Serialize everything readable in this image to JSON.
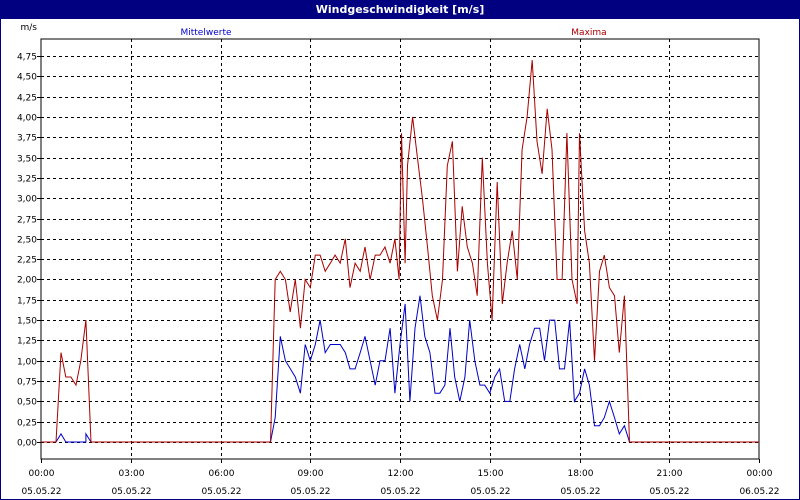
{
  "window": {
    "title": "Windgeschwindigkeit [m/s]"
  },
  "colors": {
    "mean": "#0000cc",
    "max": "#aa0000",
    "grid": "#000000",
    "axis": "#000000"
  },
  "chart_data": {
    "type": "line",
    "title": "Windgeschwindigkeit [m/s]",
    "ylabel": "m/s",
    "xlabel": "",
    "ylim": [
      0,
      4.75
    ],
    "y_ticks": [
      0,
      0.25,
      0.5,
      0.75,
      1.0,
      1.25,
      1.5,
      1.75,
      2.0,
      2.25,
      2.5,
      2.75,
      3.0,
      3.25,
      3.5,
      3.75,
      4.0,
      4.25,
      4.5,
      4.75
    ],
    "y_tick_labels": [
      "0,00",
      "0,25",
      "0,50",
      "0,75",
      "1,00",
      "1,25",
      "1,50",
      "1,75",
      "2,00",
      "2,25",
      "2,50",
      "2,75",
      "3,00",
      "3,25",
      "3,50",
      "3,75",
      "4,00",
      "4,25",
      "4,50",
      "4,75"
    ],
    "x_range_hours": [
      0,
      24
    ],
    "x_ticks": [
      {
        "hour": 0,
        "time": "00:00",
        "date": "05.05.22"
      },
      {
        "hour": 3,
        "time": "03:00",
        "date": "05.05.22"
      },
      {
        "hour": 6,
        "time": "06:00",
        "date": "05.05.22"
      },
      {
        "hour": 9,
        "time": "09:00",
        "date": "05.05.22"
      },
      {
        "hour": 12,
        "time": "12:00",
        "date": "05.05.22"
      },
      {
        "hour": 15,
        "time": "15:00",
        "date": "05.05.22"
      },
      {
        "hour": 18,
        "time": "18:00",
        "date": "05.05.22"
      },
      {
        "hour": 21,
        "time": "21:00",
        "date": "05.05.22"
      },
      {
        "hour": 24,
        "time": "00:00",
        "date": "06.05.22"
      }
    ],
    "grid": true,
    "legend": "top",
    "series": [
      {
        "name": "Mittelwerte",
        "color": "#0000cc",
        "points": [
          [
            0,
            0
          ],
          [
            0.5,
            0
          ],
          [
            0.67,
            0.1
          ],
          [
            0.83,
            0
          ],
          [
            1.5,
            0
          ],
          [
            1.5,
            0
          ],
          [
            1.5,
            0.1
          ],
          [
            1.67,
            0
          ],
          [
            2,
            0
          ],
          [
            7.67,
            0
          ],
          [
            7.83,
            0.3
          ],
          [
            8,
            1.3
          ],
          [
            8.17,
            1.0
          ],
          [
            8.5,
            0.8
          ],
          [
            8.67,
            0.6
          ],
          [
            8.83,
            1.2
          ],
          [
            9.0,
            1.0
          ],
          [
            9.17,
            1.2
          ],
          [
            9.33,
            1.5
          ],
          [
            9.5,
            1.1
          ],
          [
            9.67,
            1.2
          ],
          [
            10.0,
            1.2
          ],
          [
            10.17,
            1.1
          ],
          [
            10.33,
            0.9
          ],
          [
            10.5,
            0.9
          ],
          [
            10.67,
            1.1
          ],
          [
            10.83,
            1.3
          ],
          [
            11.0,
            1.0
          ],
          [
            11.17,
            0.7
          ],
          [
            11.33,
            1.0
          ],
          [
            11.5,
            1.0
          ],
          [
            11.67,
            1.4
          ],
          [
            11.83,
            0.6
          ],
          [
            12.0,
            1.2
          ],
          [
            12.17,
            1.7
          ],
          [
            12.33,
            0.5
          ],
          [
            12.5,
            1.4
          ],
          [
            12.67,
            1.8
          ],
          [
            12.83,
            1.3
          ],
          [
            13.0,
            1.1
          ],
          [
            13.17,
            0.6
          ],
          [
            13.33,
            0.6
          ],
          [
            13.5,
            0.7
          ],
          [
            13.67,
            1.4
          ],
          [
            13.83,
            0.8
          ],
          [
            14.0,
            0.5
          ],
          [
            14.17,
            0.8
          ],
          [
            14.33,
            1.5
          ],
          [
            14.5,
            1.0
          ],
          [
            14.67,
            0.7
          ],
          [
            14.83,
            0.7
          ],
          [
            15.0,
            0.6
          ],
          [
            15.17,
            0.8
          ],
          [
            15.33,
            0.9
          ],
          [
            15.5,
            0.5
          ],
          [
            15.67,
            0.5
          ],
          [
            15.83,
            0.9
          ],
          [
            16.0,
            1.2
          ],
          [
            16.17,
            0.9
          ],
          [
            16.33,
            1.2
          ],
          [
            16.5,
            1.4
          ],
          [
            16.67,
            1.4
          ],
          [
            16.83,
            1.0
          ],
          [
            17.0,
            1.5
          ],
          [
            17.17,
            1.5
          ],
          [
            17.33,
            0.9
          ],
          [
            17.5,
            0.9
          ],
          [
            17.67,
            1.5
          ],
          [
            17.83,
            0.5
          ],
          [
            18.0,
            0.6
          ],
          [
            18.17,
            0.9
          ],
          [
            18.33,
            0.7
          ],
          [
            18.5,
            0.2
          ],
          [
            18.67,
            0.2
          ],
          [
            18.83,
            0.3
          ],
          [
            19.0,
            0.5
          ],
          [
            19.17,
            0.3
          ],
          [
            19.33,
            0.1
          ],
          [
            19.5,
            0.2
          ],
          [
            19.67,
            0
          ],
          [
            20,
            0
          ],
          [
            24,
            0
          ]
        ]
      },
      {
        "name": "Maxima",
        "color": "#aa0000",
        "points": [
          [
            0,
            0
          ],
          [
            0.5,
            0
          ],
          [
            0.67,
            1.1
          ],
          [
            0.83,
            0.8
          ],
          [
            1.0,
            0.8
          ],
          [
            1.17,
            0.7
          ],
          [
            1.33,
            1.0
          ],
          [
            1.5,
            1.5
          ],
          [
            1.67,
            0
          ],
          [
            2,
            0
          ],
          [
            7.67,
            0
          ],
          [
            7.83,
            2.0
          ],
          [
            8.0,
            2.1
          ],
          [
            8.17,
            2.0
          ],
          [
            8.33,
            1.6
          ],
          [
            8.5,
            2.0
          ],
          [
            8.67,
            1.4
          ],
          [
            8.83,
            2.0
          ],
          [
            9.0,
            1.9
          ],
          [
            9.17,
            2.3
          ],
          [
            9.33,
            2.3
          ],
          [
            9.5,
            2.1
          ],
          [
            9.67,
            2.2
          ],
          [
            9.83,
            2.3
          ],
          [
            10.0,
            2.2
          ],
          [
            10.17,
            2.5
          ],
          [
            10.33,
            1.9
          ],
          [
            10.5,
            2.2
          ],
          [
            10.67,
            2.1
          ],
          [
            10.83,
            2.4
          ],
          [
            11.0,
            2.0
          ],
          [
            11.17,
            2.3
          ],
          [
            11.33,
            2.3
          ],
          [
            11.5,
            2.4
          ],
          [
            11.67,
            2.2
          ],
          [
            11.83,
            2.5
          ],
          [
            11.97,
            2.0
          ],
          [
            12.05,
            3.8
          ],
          [
            12.17,
            2.2
          ],
          [
            12.25,
            3.4
          ],
          [
            12.42,
            4.0
          ],
          [
            12.58,
            3.5
          ],
          [
            12.75,
            3.0
          ],
          [
            12.92,
            2.4
          ],
          [
            13.08,
            1.8
          ],
          [
            13.25,
            1.5
          ],
          [
            13.42,
            2.0
          ],
          [
            13.58,
            3.4
          ],
          [
            13.75,
            3.7
          ],
          [
            13.92,
            2.1
          ],
          [
            14.08,
            2.9
          ],
          [
            14.25,
            2.4
          ],
          [
            14.42,
            2.2
          ],
          [
            14.58,
            1.8
          ],
          [
            14.75,
            3.5
          ],
          [
            14.92,
            2.2
          ],
          [
            15.08,
            1.5
          ],
          [
            15.25,
            3.2
          ],
          [
            15.42,
            1.7
          ],
          [
            15.58,
            2.2
          ],
          [
            15.75,
            2.6
          ],
          [
            15.92,
            2.0
          ],
          [
            16.08,
            3.6
          ],
          [
            16.25,
            4.0
          ],
          [
            16.42,
            4.7
          ],
          [
            16.58,
            3.7
          ],
          [
            16.75,
            3.3
          ],
          [
            16.92,
            4.1
          ],
          [
            17.08,
            3.6
          ],
          [
            17.25,
            2.0
          ],
          [
            17.42,
            2.0
          ],
          [
            17.58,
            3.8
          ],
          [
            17.75,
            2.0
          ],
          [
            17.92,
            1.7
          ],
          [
            18.0,
            3.8
          ],
          [
            18.17,
            2.6
          ],
          [
            18.33,
            2.2
          ],
          [
            18.5,
            1.0
          ],
          [
            18.67,
            2.1
          ],
          [
            18.83,
            2.3
          ],
          [
            19.0,
            1.9
          ],
          [
            19.17,
            1.8
          ],
          [
            19.33,
            1.1
          ],
          [
            19.5,
            1.8
          ],
          [
            19.67,
            0
          ],
          [
            20,
            0
          ],
          [
            24,
            0
          ]
        ]
      }
    ]
  }
}
